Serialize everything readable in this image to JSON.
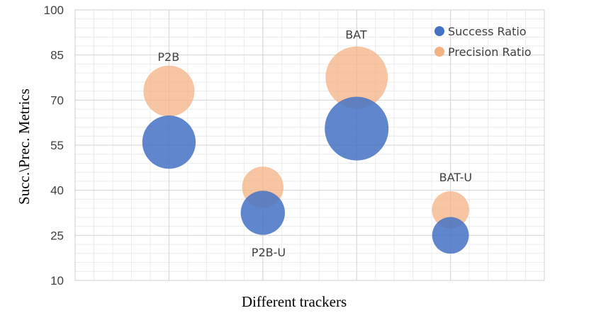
{
  "chart_data": {
    "type": "bubble",
    "title": "",
    "xlabel": "Different trackers",
    "ylabel": "Succ.\\Prec. Metrics",
    "ylim": [
      10,
      100
    ],
    "yticks": [
      10,
      25,
      40,
      55,
      70,
      85,
      100
    ],
    "xlim": [
      0,
      5
    ],
    "grid": true,
    "legend": "top-right",
    "series": [
      {
        "name": "Success Ratio",
        "color": "#4472c4",
        "points": [
          {
            "x": 1,
            "y": 56,
            "size": 3.5
          },
          {
            "x": 2,
            "y": 32.5,
            "size": 2.4
          },
          {
            "x": 3,
            "y": 60.5,
            "size": 5.0
          },
          {
            "x": 4,
            "y": 25,
            "size": 1.65
          }
        ]
      },
      {
        "name": "Precision Ratio",
        "color": "#f4b183",
        "points": [
          {
            "x": 1,
            "y": 73,
            "size": 3.2
          },
          {
            "x": 2,
            "y": 41,
            "size": 2.1
          },
          {
            "x": 3,
            "y": 77.5,
            "size": 4.75
          },
          {
            "x": 4,
            "y": 33.5,
            "size": 1.7
          }
        ]
      }
    ],
    "point_labels": [
      {
        "text": "P2B",
        "x": 1,
        "y": 83
      },
      {
        "text": "P2B-U",
        "x": 2,
        "y": 18
      },
      {
        "text": "BAT",
        "x": 3,
        "y": 90.5
      },
      {
        "text": "BAT-U",
        "x": 4,
        "y": 43
      }
    ]
  }
}
